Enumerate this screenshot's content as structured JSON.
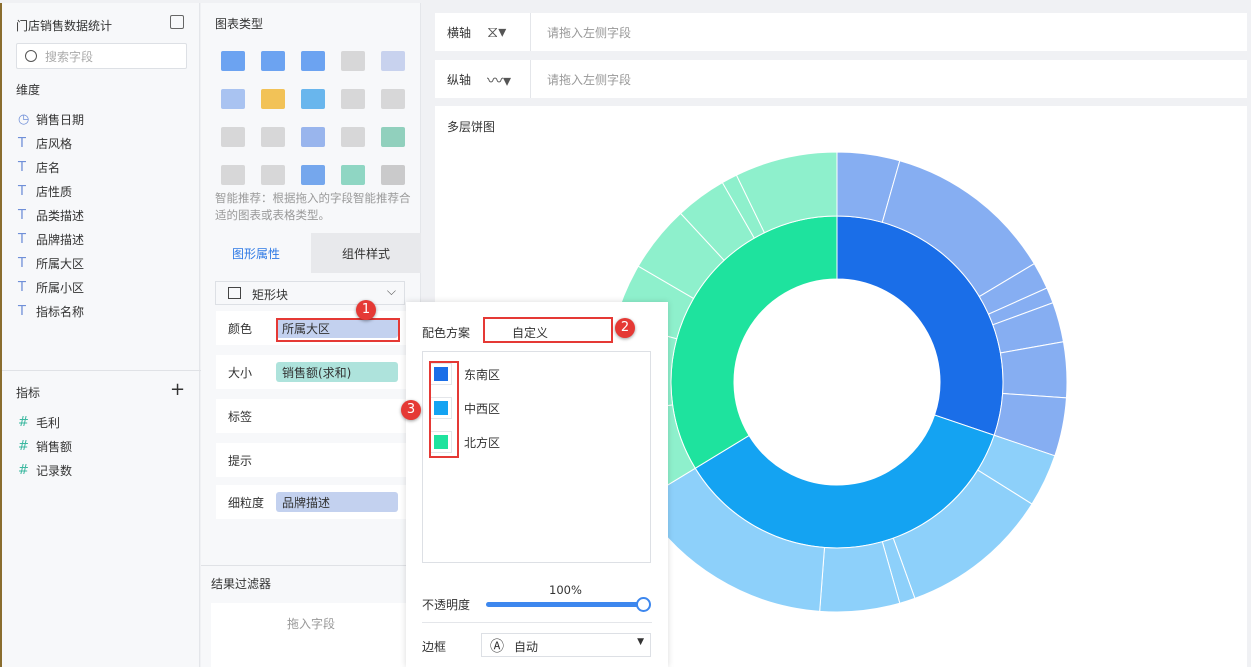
{
  "left": {
    "title": "门店销售数据统计",
    "search_placeholder": "搜索字段",
    "dim_label": "维度",
    "dimensions": [
      {
        "icon": "clock-icon",
        "label": "销售日期"
      },
      {
        "icon": "text-icon",
        "label": "店风格"
      },
      {
        "icon": "text-icon",
        "label": "店名"
      },
      {
        "icon": "text-icon",
        "label": "店性质"
      },
      {
        "icon": "text-icon",
        "label": "品类描述"
      },
      {
        "icon": "text-icon",
        "label": "品牌描述"
      },
      {
        "icon": "text-icon",
        "label": "所属大区"
      },
      {
        "icon": "text-icon",
        "label": "所属小区"
      },
      {
        "icon": "text-icon",
        "label": "指标名称"
      }
    ],
    "measure_label": "指标",
    "add": "+",
    "measures": [
      {
        "label": "毛利"
      },
      {
        "label": "销售额"
      },
      {
        "label": "记录数"
      }
    ]
  },
  "mid": {
    "chart_type_label": "图表类型",
    "hint": "智能推荐：根据拖入的字段智能推荐合适的图表或表格类型。",
    "tab_graphic": "图形属性",
    "tab_style": "组件样式",
    "shape": "矩形块",
    "rows": {
      "color": "颜色",
      "color_field": "所属大区",
      "size": "大小",
      "size_field": "销售额(求和)",
      "label": "标签",
      "tooltip": "提示",
      "granularity": "细粒度",
      "granularity_field": "品牌描述"
    },
    "filter_label": "结果过滤器",
    "filter_placeholder": "拖入字段"
  },
  "axes": {
    "x_label": "横轴",
    "y_label": "纵轴",
    "placeholder": "请拖入左侧字段"
  },
  "popup": {
    "scheme_label": "配色方案",
    "scheme_value": "自定义",
    "legend": [
      {
        "name": "东南区",
        "color": "#1a6ee8"
      },
      {
        "name": "中西区",
        "color": "#14a3f2"
      },
      {
        "name": "北方区",
        "color": "#1ee39e"
      }
    ],
    "opacity_label": "不透明度",
    "opacity_value": "100%",
    "opacity": 100,
    "border_label": "边框",
    "border_value": "自动"
  },
  "badges": [
    "1",
    "2",
    "3"
  ],
  "chart_data": {
    "type": "pie",
    "title": "多层饼图",
    "inner": {
      "categories": [
        "东南区",
        "中西区",
        "北方区"
      ],
      "values": [
        30.2,
        36.1,
        33.7
      ],
      "colors": [
        "#1a6ee8",
        "#14a3f2",
        "#1ee39e"
      ]
    },
    "outer": [
      {
        "parent": "东南区",
        "values": [
          4.4,
          12,
          1.9,
          1.1,
          2.8,
          3.9,
          4.1
        ],
        "color": "#86aef2"
      },
      {
        "parent": "中西区",
        "values": [
          3.7,
          10.6,
          1.1,
          5.6,
          15.1
        ],
        "color": "#8dd0fa"
      },
      {
        "parent": "北方区",
        "values": [
          6.5,
          6.4,
          4.2,
          4.7,
          3.6,
          1.1,
          7.2
        ],
        "color": "#8ef0cc"
      }
    ]
  }
}
